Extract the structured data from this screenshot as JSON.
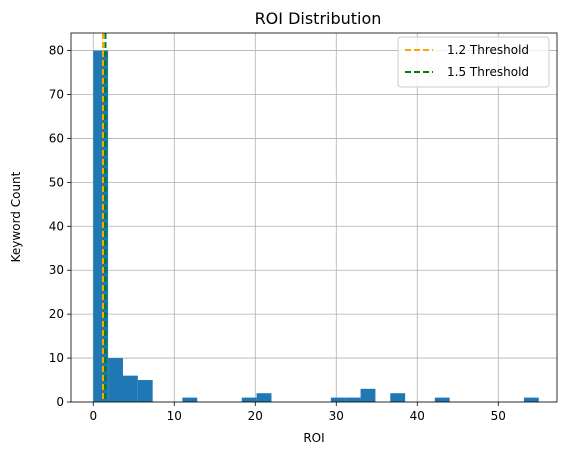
{
  "chart_data": {
    "type": "bar",
    "title": "ROI Distribution",
    "xlabel": "ROI",
    "ylabel": "Keyword Count",
    "xlim": [
      -2.75,
      57.25
    ],
    "ylim": [
      0,
      84
    ],
    "xticks": [
      0,
      10,
      20,
      30,
      40,
      50
    ],
    "yticks": [
      0,
      10,
      20,
      30,
      40,
      50,
      60,
      70,
      80
    ],
    "grid": true,
    "legend_placement": "top-right",
    "bin_width": 1.833,
    "bins": [
      {
        "x0": 0.0,
        "count": 80
      },
      {
        "x0": 1.833,
        "count": 10
      },
      {
        "x0": 3.667,
        "count": 6
      },
      {
        "x0": 5.5,
        "count": 5
      },
      {
        "x0": 11.0,
        "count": 1
      },
      {
        "x0": 18.333,
        "count": 1
      },
      {
        "x0": 20.167,
        "count": 2
      },
      {
        "x0": 29.333,
        "count": 1
      },
      {
        "x0": 31.167,
        "count": 1
      },
      {
        "x0": 33.0,
        "count": 3
      },
      {
        "x0": 36.667,
        "count": 2
      },
      {
        "x0": 42.167,
        "count": 1
      },
      {
        "x0": 53.167,
        "count": 1
      }
    ],
    "thresholds": [
      {
        "name": "1.2 Threshold",
        "x": 1.2,
        "color": "#ffa500"
      },
      {
        "name": "1.5 Threshold",
        "x": 1.5,
        "color": "#008000"
      }
    ],
    "colors": {
      "bar": "#1f77b4",
      "grid": "#b0b0b0"
    }
  }
}
